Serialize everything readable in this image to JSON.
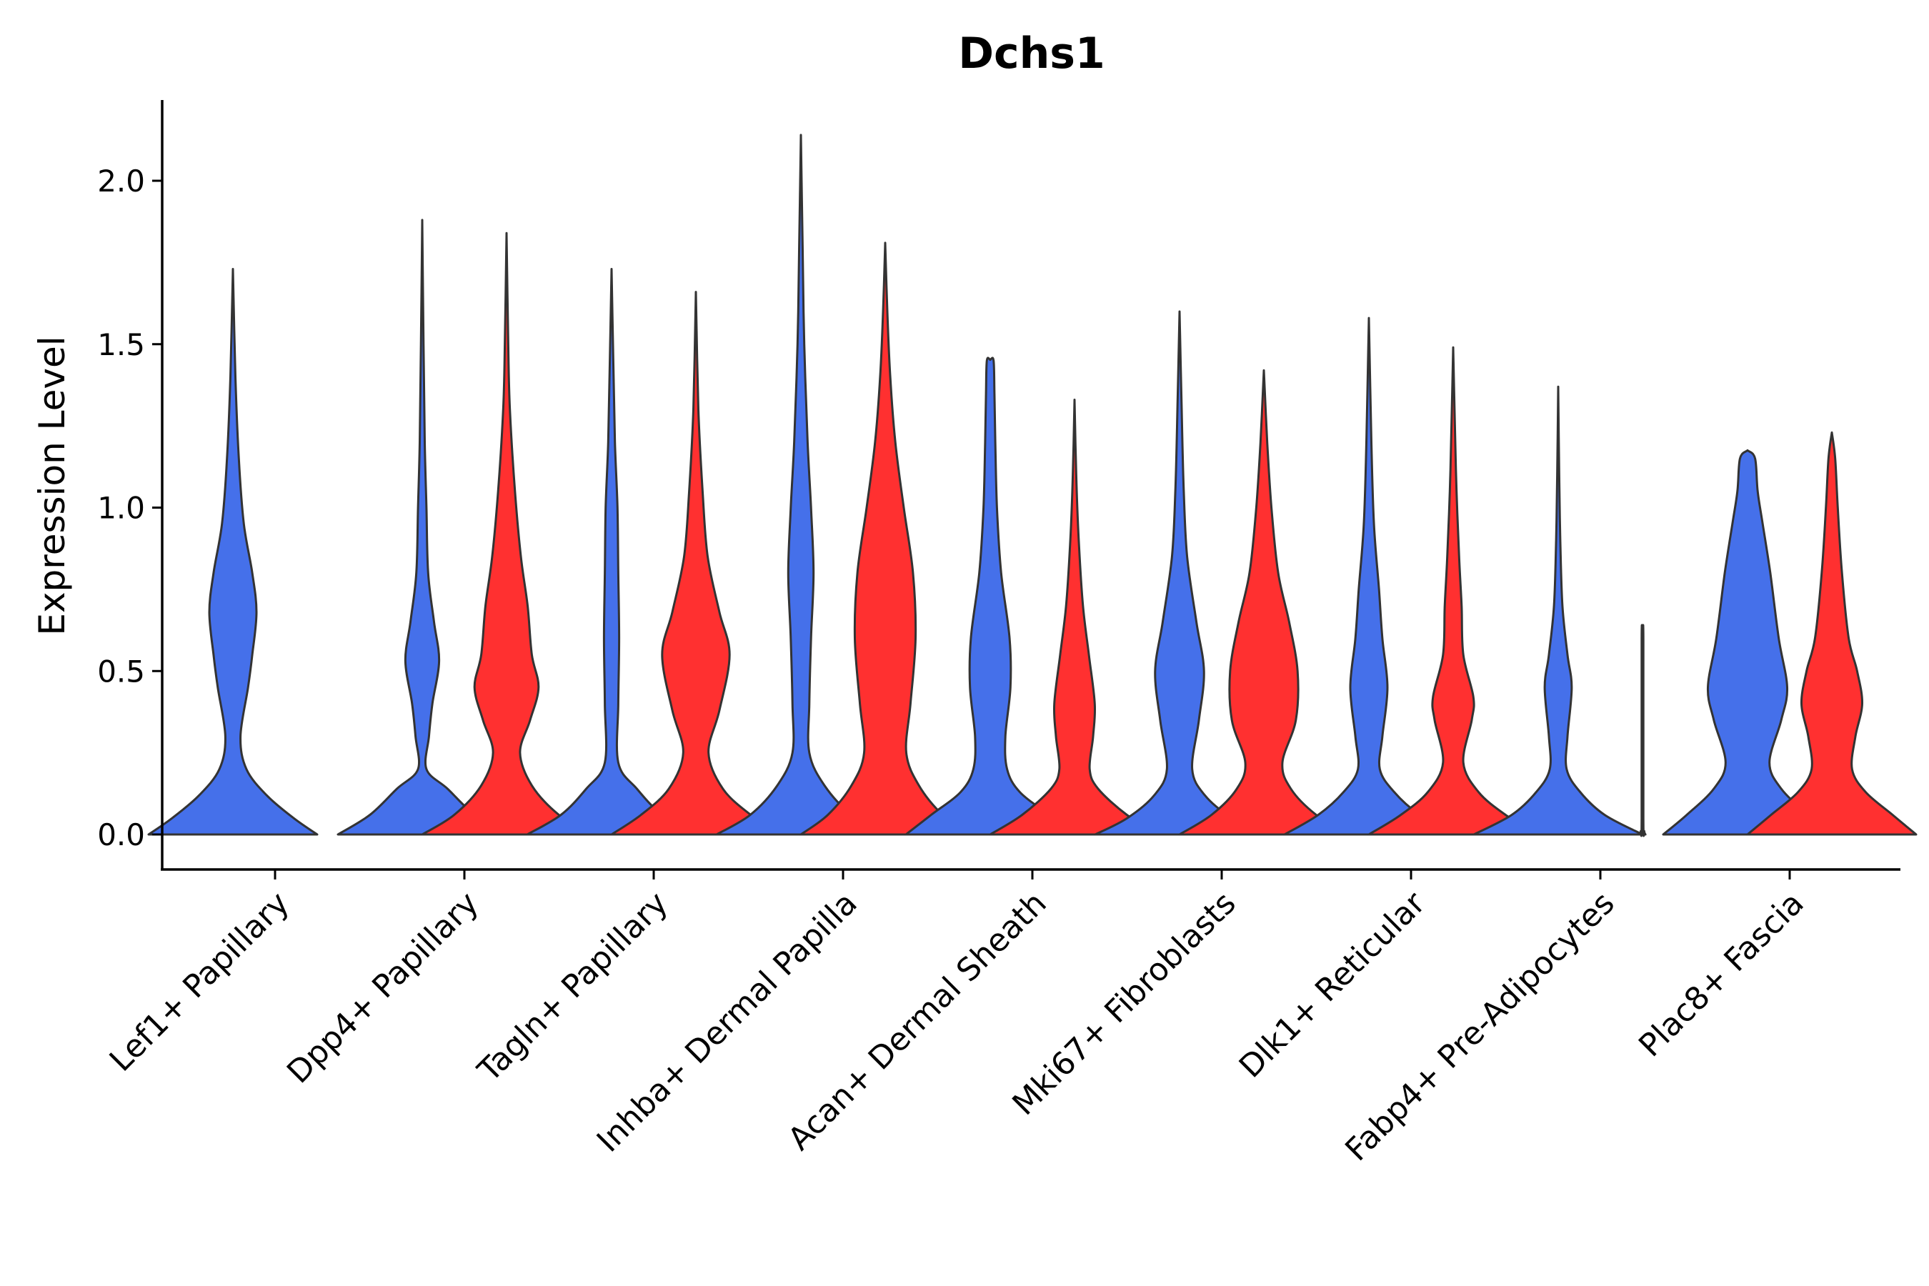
{
  "chart_data": {
    "type": "violin",
    "title": "Dchs1",
    "xlabel": "",
    "ylabel": "Expression Level",
    "ylim": [
      -0.11,
      2.25
    ],
    "yticks": [
      0.0,
      0.5,
      1.0,
      1.5,
      2.0
    ],
    "ytick_labels": [
      "0.0",
      "0.5",
      "1.0",
      "1.5",
      "2.0"
    ],
    "colors": {
      "condition_1": "#4570EA",
      "condition_2": "#FF3030",
      "outline": "#333333"
    },
    "categories": [
      "Lef1+ Papillary",
      "Dpp4+ Papillary",
      "Tagln+ Papillary",
      "Inhba+ Dermal Papilla",
      "Acan+ Dermal Sheath",
      "Mki67+ Fibroblasts",
      "Dlk1+ Reticular",
      "Fabp4+ Pre-Adipocytes",
      "Plac8+ Fascia"
    ],
    "violins": [
      {
        "category": "Lef1+ Papillary",
        "group": 1,
        "color": "#4570EA",
        "profile": [
          [
            0,
            1
          ],
          [
            0.05,
            0.72
          ],
          [
            0.12,
            0.4
          ],
          [
            0.2,
            0.16
          ],
          [
            0.3,
            0.09
          ],
          [
            0.45,
            0.18
          ],
          [
            0.55,
            0.23
          ],
          [
            0.68,
            0.28
          ],
          [
            0.8,
            0.23
          ],
          [
            0.95,
            0.13
          ],
          [
            1.15,
            0.07
          ],
          [
            1.4,
            0.03
          ],
          [
            1.73,
            0
          ]
        ]
      },
      {
        "category": "Dpp4+ Papillary",
        "group": 1,
        "color": "#4570EA",
        "profile": [
          [
            0,
            1
          ],
          [
            0.06,
            0.62
          ],
          [
            0.14,
            0.3
          ],
          [
            0.2,
            0.05
          ],
          [
            0.3,
            0.08
          ],
          [
            0.4,
            0.12
          ],
          [
            0.53,
            0.2
          ],
          [
            0.65,
            0.14
          ],
          [
            0.8,
            0.07
          ],
          [
            1.0,
            0.05
          ],
          [
            1.2,
            0.03
          ],
          [
            1.5,
            0.015
          ],
          [
            1.88,
            0
          ]
        ]
      },
      {
        "category": "Dpp4+ Papillary",
        "group": 2,
        "color": "#FF3030",
        "profile": [
          [
            0,
            1
          ],
          [
            0.06,
            0.62
          ],
          [
            0.15,
            0.3
          ],
          [
            0.25,
            0.16
          ],
          [
            0.35,
            0.28
          ],
          [
            0.45,
            0.38
          ],
          [
            0.55,
            0.3
          ],
          [
            0.7,
            0.25
          ],
          [
            0.85,
            0.17
          ],
          [
            1.05,
            0.1
          ],
          [
            1.3,
            0.04
          ],
          [
            1.5,
            0.02
          ],
          [
            1.84,
            0
          ]
        ]
      },
      {
        "category": "Tagln+ Papillary",
        "group": 1,
        "color": "#4570EA",
        "profile": [
          [
            0,
            1
          ],
          [
            0.06,
            0.6
          ],
          [
            0.14,
            0.3
          ],
          [
            0.22,
            0.08
          ],
          [
            0.4,
            0.08
          ],
          [
            0.6,
            0.09
          ],
          [
            0.8,
            0.08
          ],
          [
            1.0,
            0.07
          ],
          [
            1.2,
            0.04
          ],
          [
            1.45,
            0.02
          ],
          [
            1.73,
            0
          ]
        ]
      },
      {
        "category": "Tagln+ Papillary",
        "group": 2,
        "color": "#FF3030",
        "profile": [
          [
            0,
            1
          ],
          [
            0.06,
            0.65
          ],
          [
            0.14,
            0.32
          ],
          [
            0.25,
            0.15
          ],
          [
            0.38,
            0.28
          ],
          [
            0.55,
            0.4
          ],
          [
            0.68,
            0.28
          ],
          [
            0.85,
            0.14
          ],
          [
            1.05,
            0.08
          ],
          [
            1.3,
            0.03
          ],
          [
            1.66,
            0
          ]
        ]
      },
      {
        "category": "Inhba+ Dermal Papilla",
        "group": 1,
        "color": "#4570EA",
        "profile": [
          [
            0,
            1
          ],
          [
            0.06,
            0.6
          ],
          [
            0.15,
            0.28
          ],
          [
            0.25,
            0.1
          ],
          [
            0.4,
            0.1
          ],
          [
            0.6,
            0.12
          ],
          [
            0.8,
            0.15
          ],
          [
            1.0,
            0.12
          ],
          [
            1.2,
            0.08
          ],
          [
            1.5,
            0.04
          ],
          [
            1.8,
            0.02
          ],
          [
            2.14,
            0
          ]
        ]
      },
      {
        "category": "Inhba+ Dermal Papilla",
        "group": 2,
        "color": "#FF3030",
        "profile": [
          [
            0,
            1
          ],
          [
            0.06,
            0.68
          ],
          [
            0.15,
            0.4
          ],
          [
            0.25,
            0.25
          ],
          [
            0.4,
            0.3
          ],
          [
            0.6,
            0.36
          ],
          [
            0.8,
            0.33
          ],
          [
            1.0,
            0.22
          ],
          [
            1.2,
            0.12
          ],
          [
            1.4,
            0.06
          ],
          [
            1.6,
            0.025
          ],
          [
            1.81,
            0
          ]
        ]
      },
      {
        "category": "Acan+ Dermal Sheath",
        "group": 1,
        "color": "#4570EA",
        "profile": [
          [
            0,
            1
          ],
          [
            0.06,
            0.7
          ],
          [
            0.13,
            0.35
          ],
          [
            0.2,
            0.2
          ],
          [
            0.3,
            0.18
          ],
          [
            0.45,
            0.24
          ],
          [
            0.6,
            0.23
          ],
          [
            0.8,
            0.13
          ],
          [
            1.0,
            0.08
          ],
          [
            1.2,
            0.06
          ],
          [
            1.35,
            0.05
          ],
          [
            1.45,
            0.04
          ],
          [
            1.452,
            0
          ]
        ]
      },
      {
        "category": "Acan+ Dermal Sheath",
        "group": 2,
        "color": "#FF3030",
        "profile": [
          [
            0,
            1
          ],
          [
            0.06,
            0.62
          ],
          [
            0.14,
            0.28
          ],
          [
            0.2,
            0.18
          ],
          [
            0.3,
            0.22
          ],
          [
            0.4,
            0.24
          ],
          [
            0.55,
            0.17
          ],
          [
            0.7,
            0.1
          ],
          [
            0.9,
            0.05
          ],
          [
            1.1,
            0.02
          ],
          [
            1.33,
            0
          ]
        ]
      },
      {
        "category": "Mki67+ Fibroblasts",
        "group": 1,
        "color": "#4570EA",
        "profile": [
          [
            0,
            1
          ],
          [
            0.05,
            0.62
          ],
          [
            0.12,
            0.3
          ],
          [
            0.2,
            0.15
          ],
          [
            0.35,
            0.23
          ],
          [
            0.5,
            0.29
          ],
          [
            0.65,
            0.2
          ],
          [
            0.85,
            0.09
          ],
          [
            1.05,
            0.05
          ],
          [
            1.3,
            0.025
          ],
          [
            1.6,
            0
          ]
        ]
      },
      {
        "category": "Mki67+ Fibroblasts",
        "group": 2,
        "color": "#FF3030",
        "profile": [
          [
            0,
            1
          ],
          [
            0.06,
            0.62
          ],
          [
            0.14,
            0.32
          ],
          [
            0.22,
            0.22
          ],
          [
            0.35,
            0.38
          ],
          [
            0.5,
            0.4
          ],
          [
            0.65,
            0.3
          ],
          [
            0.8,
            0.17
          ],
          [
            1.0,
            0.09
          ],
          [
            1.2,
            0.04
          ],
          [
            1.42,
            0
          ]
        ]
      },
      {
        "category": "Dlk1+ Reticular",
        "group": 1,
        "color": "#4570EA",
        "profile": [
          [
            0,
            1
          ],
          [
            0.06,
            0.6
          ],
          [
            0.13,
            0.3
          ],
          [
            0.2,
            0.13
          ],
          [
            0.3,
            0.16
          ],
          [
            0.45,
            0.22
          ],
          [
            0.6,
            0.16
          ],
          [
            0.75,
            0.12
          ],
          [
            0.95,
            0.06
          ],
          [
            1.2,
            0.03
          ],
          [
            1.58,
            0
          ]
        ]
      },
      {
        "category": "Dlk1+ Reticular",
        "group": 2,
        "color": "#FF3030",
        "profile": [
          [
            0,
            1
          ],
          [
            0.06,
            0.62
          ],
          [
            0.13,
            0.3
          ],
          [
            0.22,
            0.12
          ],
          [
            0.35,
            0.22
          ],
          [
            0.42,
            0.24
          ],
          [
            0.55,
            0.12
          ],
          [
            0.7,
            0.1
          ],
          [
            0.85,
            0.07
          ],
          [
            1.05,
            0.04
          ],
          [
            1.25,
            0.02
          ],
          [
            1.49,
            0
          ]
        ]
      },
      {
        "category": "Fabp4+ Pre-Adipocytes",
        "group": 1,
        "color": "#4570EA",
        "profile": [
          [
            0,
            1
          ],
          [
            0.06,
            0.55
          ],
          [
            0.13,
            0.26
          ],
          [
            0.2,
            0.1
          ],
          [
            0.3,
            0.11
          ],
          [
            0.45,
            0.16
          ],
          [
            0.55,
            0.11
          ],
          [
            0.7,
            0.05
          ],
          [
            0.9,
            0.025
          ],
          [
            1.1,
            0.012
          ],
          [
            1.37,
            0
          ]
        ]
      },
      {
        "category": "Fabp4+ Pre-Adipocytes",
        "group": 2,
        "color": "#FF3030",
        "profile": [
          [
            0,
            0.035
          ],
          [
            0.01,
            0.02
          ],
          [
            0.05,
            0.01
          ],
          [
            0.6,
            0.01
          ],
          [
            0.6,
            0
          ]
        ]
      },
      {
        "category": "Plac8+ Fascia",
        "group": 1,
        "color": "#4570EA",
        "profile": [
          [
            0,
            1
          ],
          [
            0.06,
            0.72
          ],
          [
            0.14,
            0.4
          ],
          [
            0.22,
            0.26
          ],
          [
            0.35,
            0.4
          ],
          [
            0.45,
            0.47
          ],
          [
            0.6,
            0.37
          ],
          [
            0.8,
            0.27
          ],
          [
            0.95,
            0.18
          ],
          [
            1.05,
            0.12
          ],
          [
            1.15,
            0.09
          ],
          [
            1.175,
            0
          ]
        ]
      },
      {
        "category": "Plac8+ Fascia",
        "group": 2,
        "color": "#FF3030",
        "profile": [
          [
            0,
            1
          ],
          [
            0.06,
            0.72
          ],
          [
            0.13,
            0.4
          ],
          [
            0.2,
            0.24
          ],
          [
            0.3,
            0.28
          ],
          [
            0.4,
            0.36
          ],
          [
            0.5,
            0.3
          ],
          [
            0.6,
            0.2
          ],
          [
            0.8,
            0.12
          ],
          [
            1.0,
            0.07
          ],
          [
            1.15,
            0.04
          ],
          [
            1.23,
            0
          ]
        ]
      }
    ]
  }
}
